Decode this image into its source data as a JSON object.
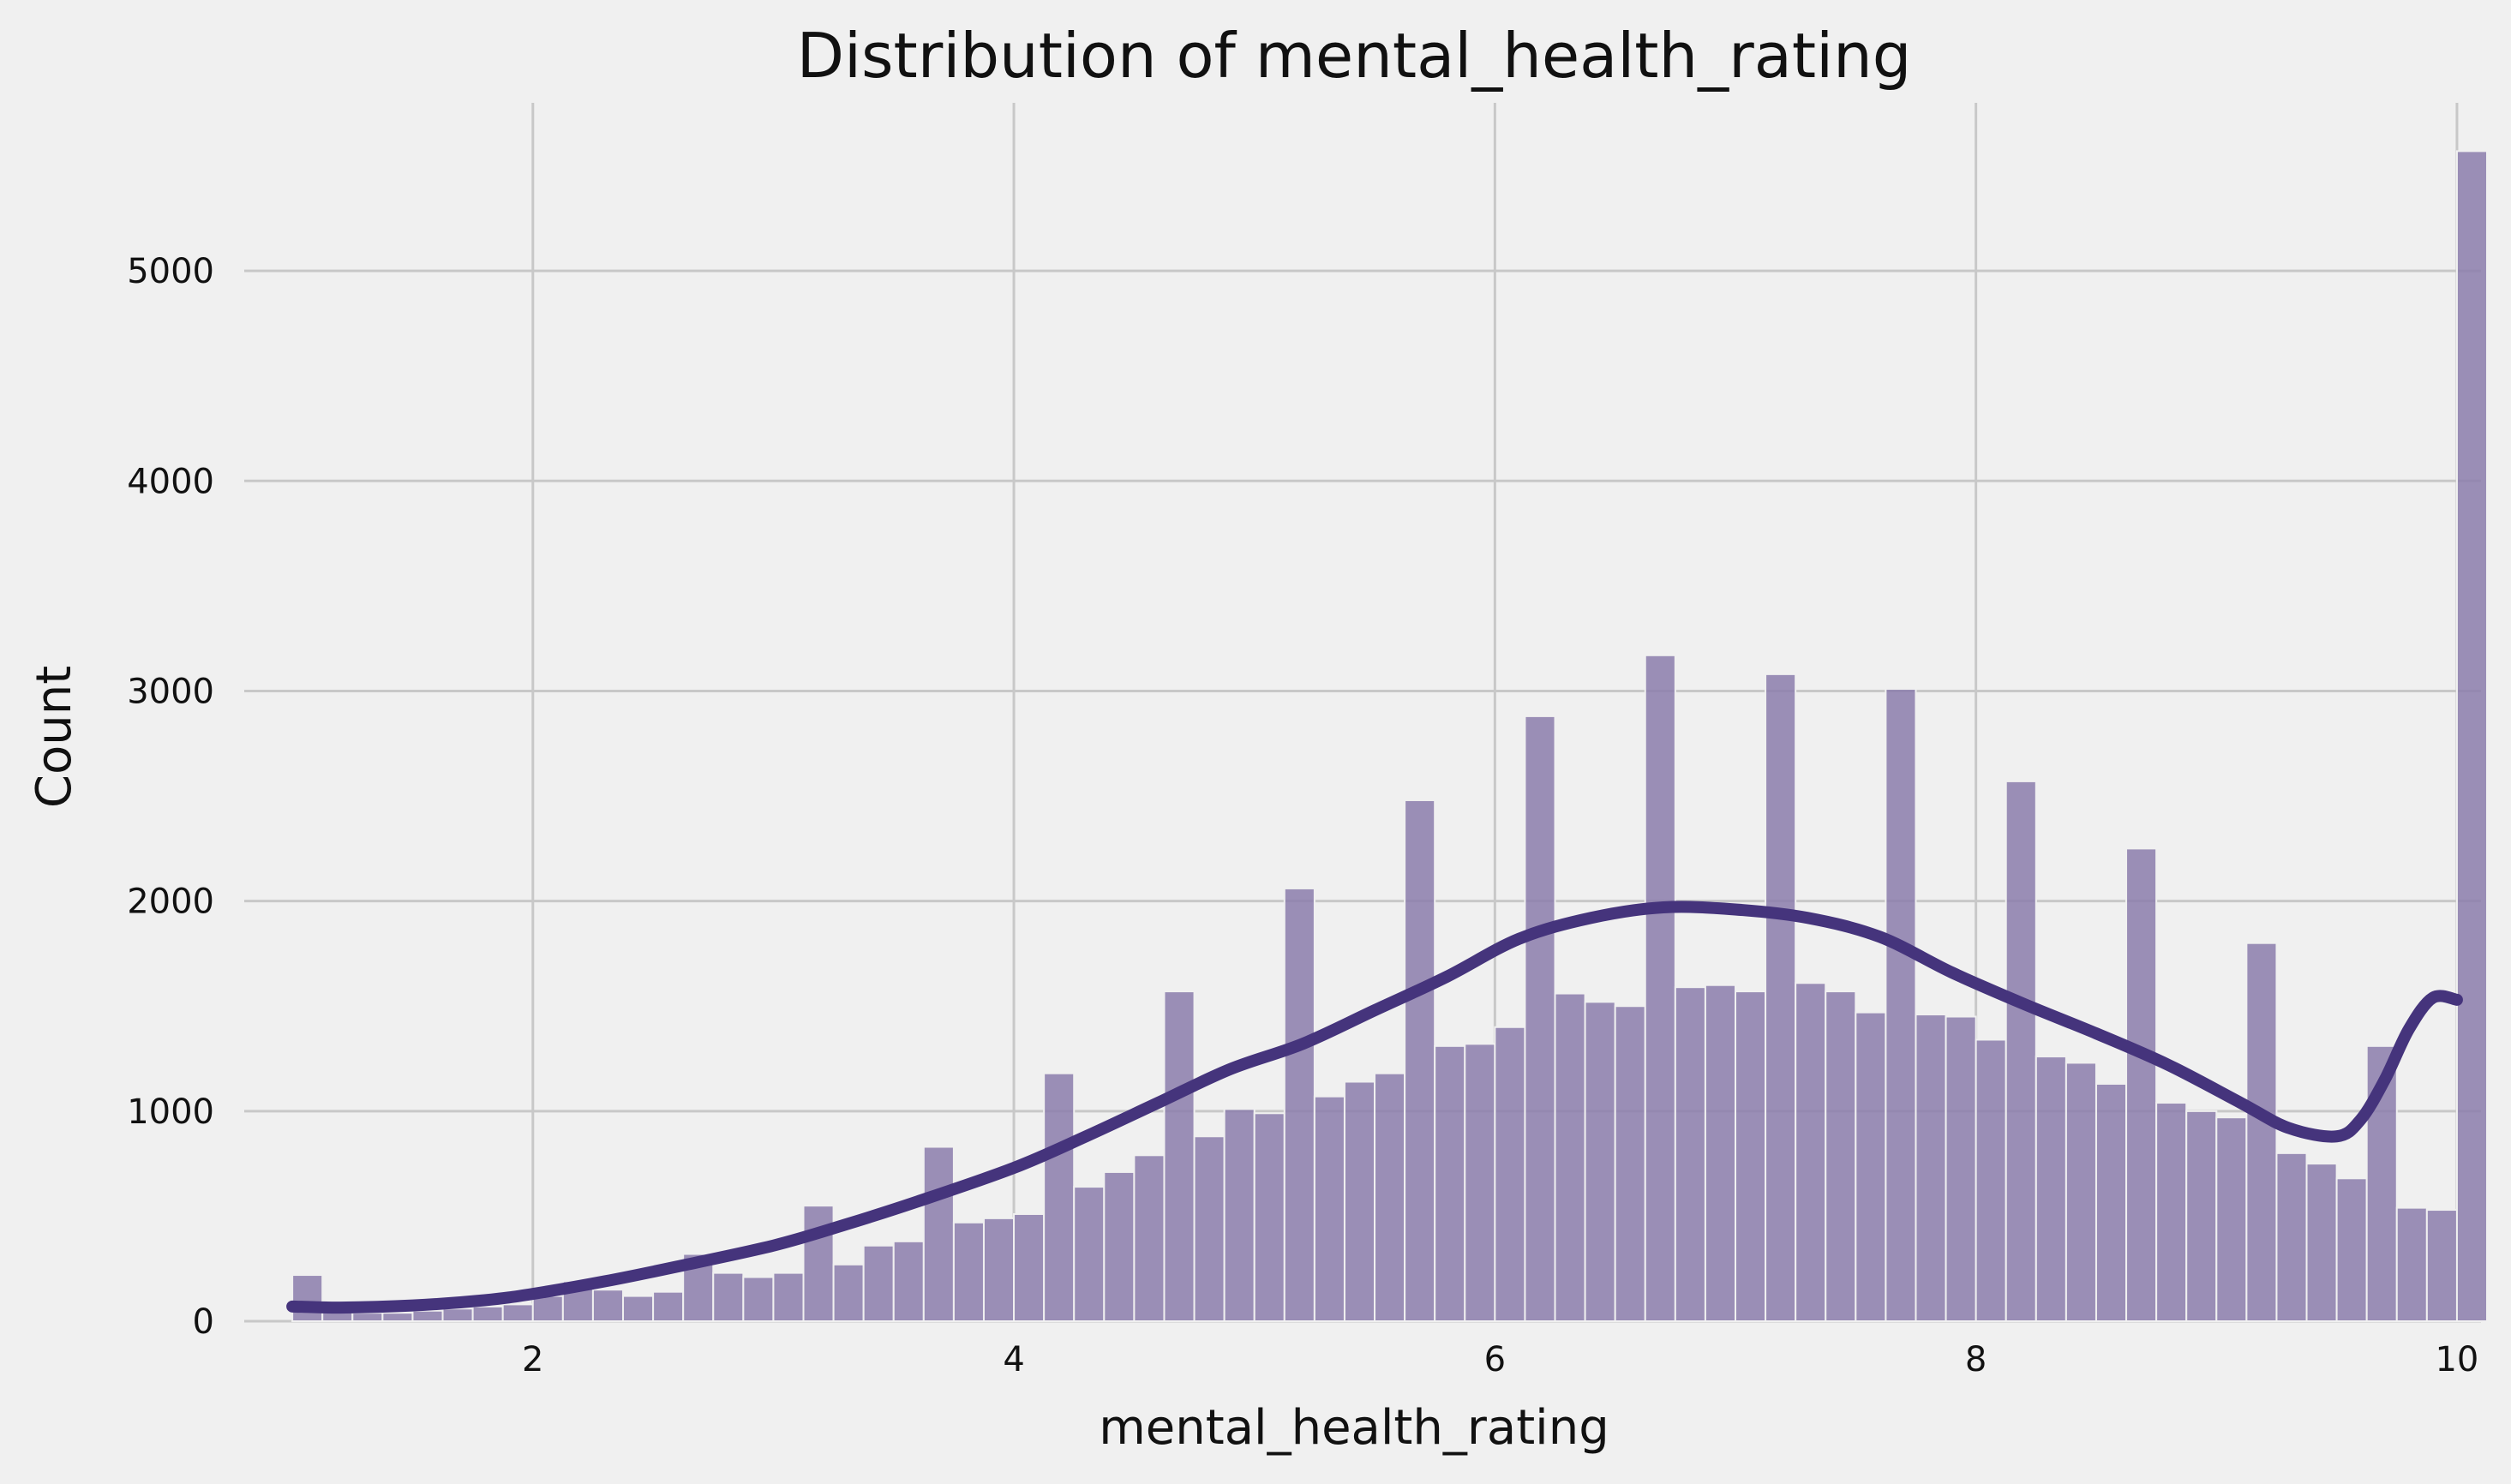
{
  "chart_data": {
    "type": "bar",
    "title": "Distribution of mental_health_rating",
    "xlabel": "mental_health_rating",
    "ylabel": "Count",
    "xlim": [
      0.8,
      10.1
    ],
    "ylim": [
      0,
      5800
    ],
    "x_ticks": [
      2,
      4,
      6,
      8,
      10
    ],
    "y_ticks": [
      0,
      1000,
      2000,
      3000,
      4000,
      5000
    ],
    "grid": true,
    "bar_color": "#8b7dab",
    "kde_color": "#45347c",
    "bins": {
      "start": 1.0,
      "width": 0.125,
      "counts": [
        220,
        50,
        40,
        40,
        50,
        60,
        70,
        80,
        120,
        190,
        150,
        120,
        140,
        320,
        230,
        210,
        230,
        550,
        270,
        360,
        380,
        830,
        470,
        490,
        510,
        1180,
        640,
        710,
        790,
        1570,
        880,
        1010,
        990,
        2060,
        1070,
        1140,
        1180,
        2480,
        1310,
        1320,
        1400,
        2880,
        1560,
        1520,
        1500,
        3170,
        1590,
        1600,
        1570,
        3080,
        1610,
        1570,
        1470,
        3010,
        1460,
        1450,
        1340,
        2570,
        1260,
        1230,
        1130,
        2250,
        1040,
        1000,
        970,
        1800,
        800,
        750,
        680,
        1310,
        540,
        530,
        5570
      ]
    },
    "kde": {
      "name": "",
      "x": [
        1.0,
        1.2,
        1.5,
        1.8,
        2.0,
        2.3,
        2.6,
        3.0,
        3.3,
        3.6,
        4.0,
        4.3,
        4.6,
        4.9,
        5.2,
        5.5,
        5.8,
        6.1,
        6.4,
        6.7,
        7.0,
        7.3,
        7.6,
        7.9,
        8.2,
        8.5,
        8.8,
        9.1,
        9.3,
        9.5,
        9.6,
        9.7,
        9.8,
        9.9,
        10.0
      ],
      "y": [
        70,
        65,
        75,
        100,
        130,
        190,
        260,
        360,
        460,
        570,
        730,
        880,
        1040,
        1200,
        1320,
        1480,
        1640,
        1820,
        1920,
        1970,
        1960,
        1920,
        1830,
        1660,
        1510,
        1370,
        1220,
        1040,
        920,
        880,
        960,
        1150,
        1390,
        1540,
        1530
      ]
    }
  }
}
